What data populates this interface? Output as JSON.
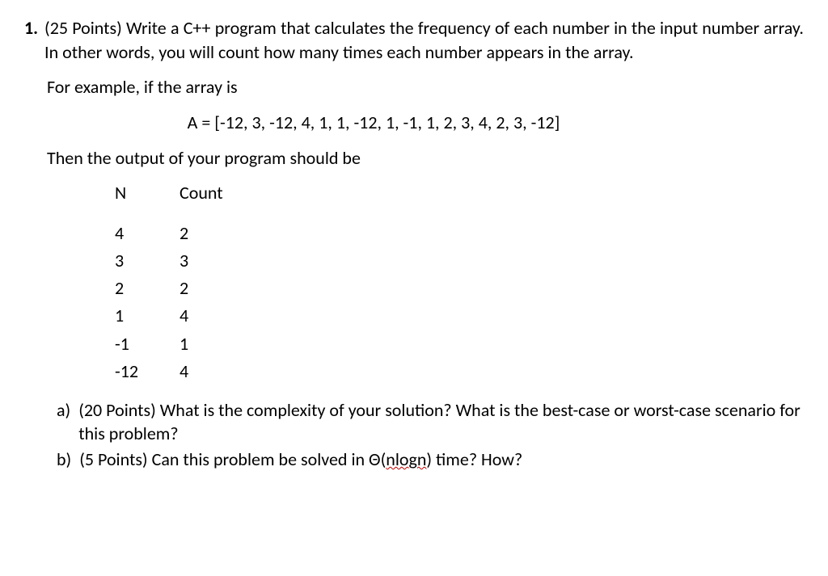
{
  "question": {
    "number": "1.",
    "points_label": "(25 Points)",
    "prompt": "Write a C++ program that calculates the frequency of each number in the input number array. In other words, you will count how many times each number appears in the array."
  },
  "example_intro": "For example, if the array is",
  "array_text": "A = [-12, 3, -12, 4, 1, 1, -12, 1, -1, 1, 2, 3, 4, 2, 3, -12]",
  "output_intro": "Then the output of your program should be",
  "table": {
    "header_n": "N",
    "header_count": "Count",
    "rows": [
      {
        "n": "4",
        "count": "2"
      },
      {
        "n": "3",
        "count": "3"
      },
      {
        "n": "2",
        "count": "2"
      },
      {
        "n": "1",
        "count": "4"
      },
      {
        "n": "-1",
        "count": "1"
      },
      {
        "n": "-12",
        "count": "4"
      }
    ]
  },
  "sub_a": {
    "label": "a)",
    "points": "(20 Points)",
    "text": "What is the complexity of your solution? What is the best-case or worst-case scenario for this problem?"
  },
  "sub_b": {
    "label": "b)",
    "points": "(5 Points)",
    "text_before": "Can this problem be solved in Θ(",
    "nlogn": "nlogn",
    "text_after": ") time? How?"
  }
}
